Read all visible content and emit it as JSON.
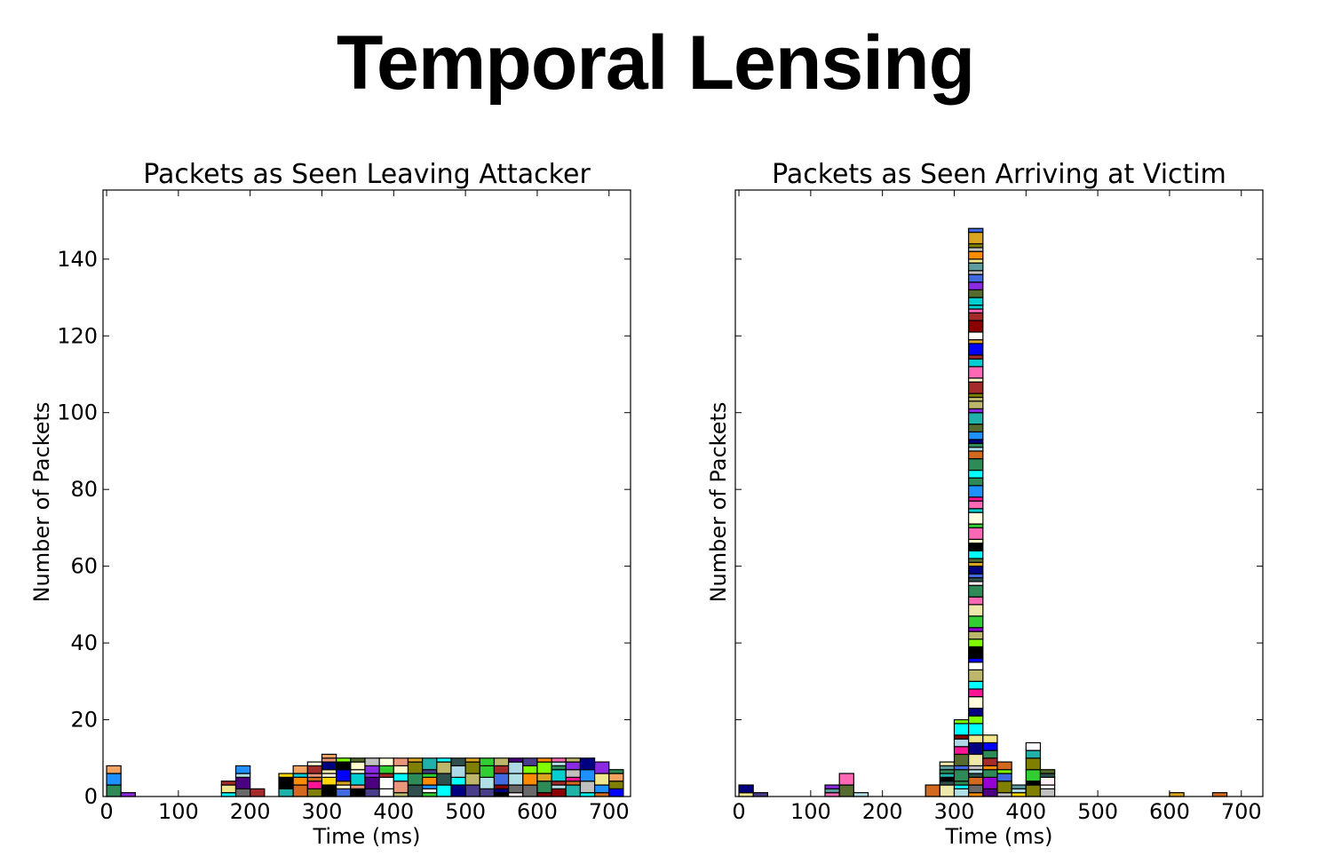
{
  "slide": {
    "title": "Temporal Lensing"
  },
  "palette": [
    "#c0c0c0",
    "#ffffff",
    "#a52a2a",
    "#556b2f",
    "#000080",
    "#4169e1",
    "#ff69b4",
    "#ffd700",
    "#2e8b57",
    "#8a2be2",
    "#00ffff",
    "#f4a460",
    "#7fff00",
    "#1e90ff",
    "#ff1493",
    "#2f4f4f",
    "#bdb76b",
    "#ff8c00",
    "#000000",
    "#add8e6",
    "#808000",
    "#5f9ea0",
    "#fffacd",
    "#8b0000",
    "#e9967a",
    "#483d8b",
    "#00ced1",
    "#f0e68c",
    "#4b0082",
    "#20b2aa",
    "#696969",
    "#daa520",
    "#9400d3",
    "#b0e0e6",
    "#fff0f5",
    "#d2691e",
    "#0000ff",
    "#32cd32",
    "#eee8aa",
    "#ffffe0"
  ],
  "chart_data": [
    {
      "type": "bar",
      "stacked": true,
      "title": "Packets as Seen Leaving Attacker",
      "xlabel": "Time (ms)",
      "ylabel": "Number of Packets",
      "xlim": [
        -5,
        730
      ],
      "ylim": [
        0,
        158
      ],
      "xticks": [
        0,
        100,
        200,
        300,
        400,
        500,
        600,
        700
      ],
      "yticks": [
        0,
        20,
        40,
        60,
        80,
        100,
        120,
        140
      ],
      "show_ytick_labels": true,
      "bin_width": 20,
      "bins": [
        0,
        20,
        40,
        60,
        80,
        100,
        120,
        140,
        160,
        180,
        200,
        220,
        240,
        260,
        280,
        300,
        320,
        340,
        360,
        380,
        400,
        420,
        440,
        460,
        480,
        500,
        520,
        540,
        560,
        580,
        600,
        620,
        640,
        660,
        680,
        700
      ],
      "values": [
        8,
        1,
        0,
        0,
        0,
        0,
        0,
        0,
        4,
        8,
        2,
        0,
        6,
        8,
        9,
        11,
        10,
        10,
        10,
        10,
        10,
        10,
        10,
        10,
        10,
        10,
        10,
        10,
        10,
        10,
        10,
        10,
        10,
        10,
        9,
        7
      ]
    },
    {
      "type": "bar",
      "stacked": true,
      "title": "Packets as Seen Arriving at Victim",
      "xlabel": "Time (ms)",
      "ylabel": "Number of Packets",
      "xlim": [
        -5,
        730
      ],
      "ylim": [
        0,
        158
      ],
      "xticks": [
        0,
        100,
        200,
        300,
        400,
        500,
        600,
        700
      ],
      "yticks": [
        0,
        20,
        40,
        60,
        80,
        100,
        120,
        140
      ],
      "show_ytick_labels": false,
      "bin_width": 20,
      "bins": [
        0,
        20,
        40,
        60,
        80,
        100,
        120,
        140,
        160,
        180,
        200,
        220,
        240,
        260,
        280,
        300,
        320,
        340,
        360,
        380,
        400,
        420,
        440,
        460,
        480,
        500,
        520,
        540,
        560,
        580,
        600,
        620,
        640,
        660,
        680,
        700
      ],
      "values": [
        3,
        1,
        0,
        0,
        0,
        0,
        3,
        6,
        1,
        0,
        0,
        0,
        0,
        3,
        9,
        20,
        148,
        16,
        9,
        3,
        14,
        7,
        0,
        0,
        0,
        0,
        0,
        0,
        0,
        0,
        1,
        0,
        0,
        1,
        0,
        0
      ]
    }
  ]
}
